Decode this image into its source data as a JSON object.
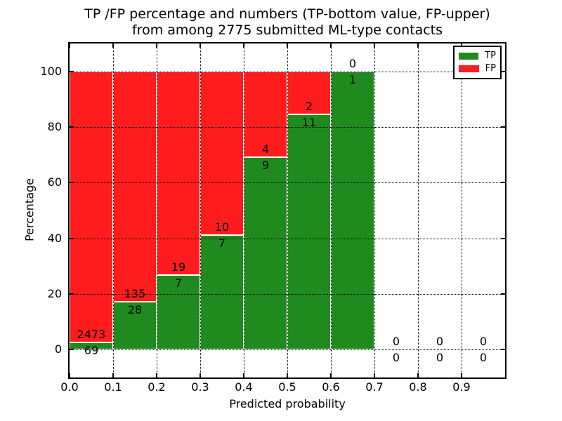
{
  "chart_data": {
    "type": "bar",
    "stacked": true,
    "normalized": "each bin scaled to 100%",
    "title_line1": "TP /FP percentage and numbers (TP-bottom value, FP-upper)",
    "title_line2": "from among 2775 submitted ML-type contacts",
    "xlabel": "Predicted probability",
    "ylabel": "Percentage",
    "xlim": [
      0.0,
      1.0
    ],
    "ylim": [
      -10,
      110
    ],
    "bin_width": 0.1,
    "grid": "dotted",
    "legend_position": "upper right",
    "series": [
      {
        "name": "TP",
        "color": "#1f8b1f",
        "values": [
          69,
          28,
          7,
          7,
          9,
          11,
          1,
          0,
          0,
          0
        ]
      },
      {
        "name": "FP",
        "color": "#ff1c1c",
        "values": [
          2473,
          135,
          19,
          10,
          4,
          2,
          0,
          0,
          0,
          0
        ]
      }
    ],
    "bins": [
      {
        "x0": 0.0,
        "x1": 0.1,
        "tp": 69,
        "fp": 2473
      },
      {
        "x0": 0.1,
        "x1": 0.2,
        "tp": 28,
        "fp": 135
      },
      {
        "x0": 0.2,
        "x1": 0.3,
        "tp": 7,
        "fp": 19
      },
      {
        "x0": 0.3,
        "x1": 0.4,
        "tp": 7,
        "fp": 10
      },
      {
        "x0": 0.4,
        "x1": 0.5,
        "tp": 9,
        "fp": 4
      },
      {
        "x0": 0.5,
        "x1": 0.6,
        "tp": 11,
        "fp": 2
      },
      {
        "x0": 0.6,
        "x1": 0.7,
        "tp": 1,
        "fp": 0
      },
      {
        "x0": 0.7,
        "x1": 0.8,
        "tp": 0,
        "fp": 0
      },
      {
        "x0": 0.8,
        "x1": 0.9,
        "tp": 0,
        "fp": 0
      },
      {
        "x0": 0.9,
        "x1": 1.0,
        "tp": 0,
        "fp": 0
      }
    ],
    "xticks": [
      {
        "value": 0.0,
        "label": "0.0"
      },
      {
        "value": 0.1,
        "label": "0.1"
      },
      {
        "value": 0.2,
        "label": "0.2"
      },
      {
        "value": 0.3,
        "label": "0.3"
      },
      {
        "value": 0.4,
        "label": "0.4"
      },
      {
        "value": 0.5,
        "label": "0.5"
      },
      {
        "value": 0.6,
        "label": "0.6"
      },
      {
        "value": 0.7,
        "label": "0.7"
      },
      {
        "value": 0.8,
        "label": "0.8"
      },
      {
        "value": 0.9,
        "label": "0.9"
      }
    ],
    "yticks": [
      {
        "value": 0,
        "label": "0"
      },
      {
        "value": 20,
        "label": "20"
      },
      {
        "value": 40,
        "label": "40"
      },
      {
        "value": 60,
        "label": "60"
      },
      {
        "value": 80,
        "label": "80"
      },
      {
        "value": 100,
        "label": "100"
      }
    ]
  }
}
